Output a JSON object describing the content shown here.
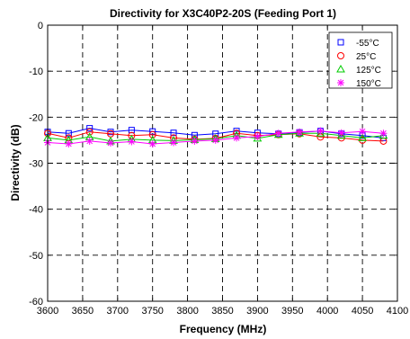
{
  "chart_data": {
    "type": "line",
    "title": "Directivity for X3C40P2-20S (Feeding Port 1)",
    "xlabel": "Frequency (MHz)",
    "ylabel": "Directivity (dB)",
    "xlim": [
      3600,
      4100
    ],
    "ylim": [
      -60,
      0
    ],
    "xticks": [
      3600,
      3650,
      3700,
      3750,
      3800,
      3850,
      3900,
      3950,
      4000,
      4050,
      4100
    ],
    "yticks": [
      0,
      -10,
      -20,
      -30,
      -40,
      -50,
      -60
    ],
    "grid": true,
    "legend_position": "top-right",
    "x": [
      3600,
      3630,
      3660,
      3690,
      3720,
      3750,
      3780,
      3810,
      3840,
      3870,
      3900,
      3930,
      3960,
      3990,
      4020,
      4050,
      4080
    ],
    "series": [
      {
        "name": "-55°C",
        "color": "#0000ff",
        "marker": "square",
        "values": [
          -23.2,
          -23.5,
          -22.4,
          -23.2,
          -22.8,
          -23.1,
          -23.4,
          -23.9,
          -23.6,
          -23.0,
          -23.4,
          -23.6,
          -23.3,
          -23.0,
          -23.6,
          -24.0,
          -24.5
        ]
      },
      {
        "name": "25°C",
        "color": "#ff0000",
        "marker": "circle",
        "values": [
          -23.5,
          -24.5,
          -23.2,
          -23.6,
          -24.0,
          -23.8,
          -24.5,
          -24.8,
          -24.6,
          -23.5,
          -24.0,
          -23.8,
          -23.6,
          -24.3,
          -24.5,
          -25.0,
          -25.2
        ]
      },
      {
        "name": "125°C",
        "color": "#00cc00",
        "marker": "triangle",
        "values": [
          -24.5,
          -25.0,
          -24.3,
          -25.2,
          -24.8,
          -25.0,
          -25.1,
          -24.9,
          -24.7,
          -24.0,
          -24.6,
          -23.8,
          -23.5,
          -23.5,
          -24.0,
          -24.5,
          -24.0
        ]
      },
      {
        "name": "150°C",
        "color": "#ff00ff",
        "marker": "asterisk",
        "values": [
          -25.5,
          -25.8,
          -25.2,
          -25.6,
          -25.3,
          -25.8,
          -25.5,
          -25.2,
          -25.0,
          -24.5,
          -24.2,
          -23.5,
          -23.2,
          -23.0,
          -23.4,
          -23.1,
          -23.5
        ]
      }
    ]
  }
}
